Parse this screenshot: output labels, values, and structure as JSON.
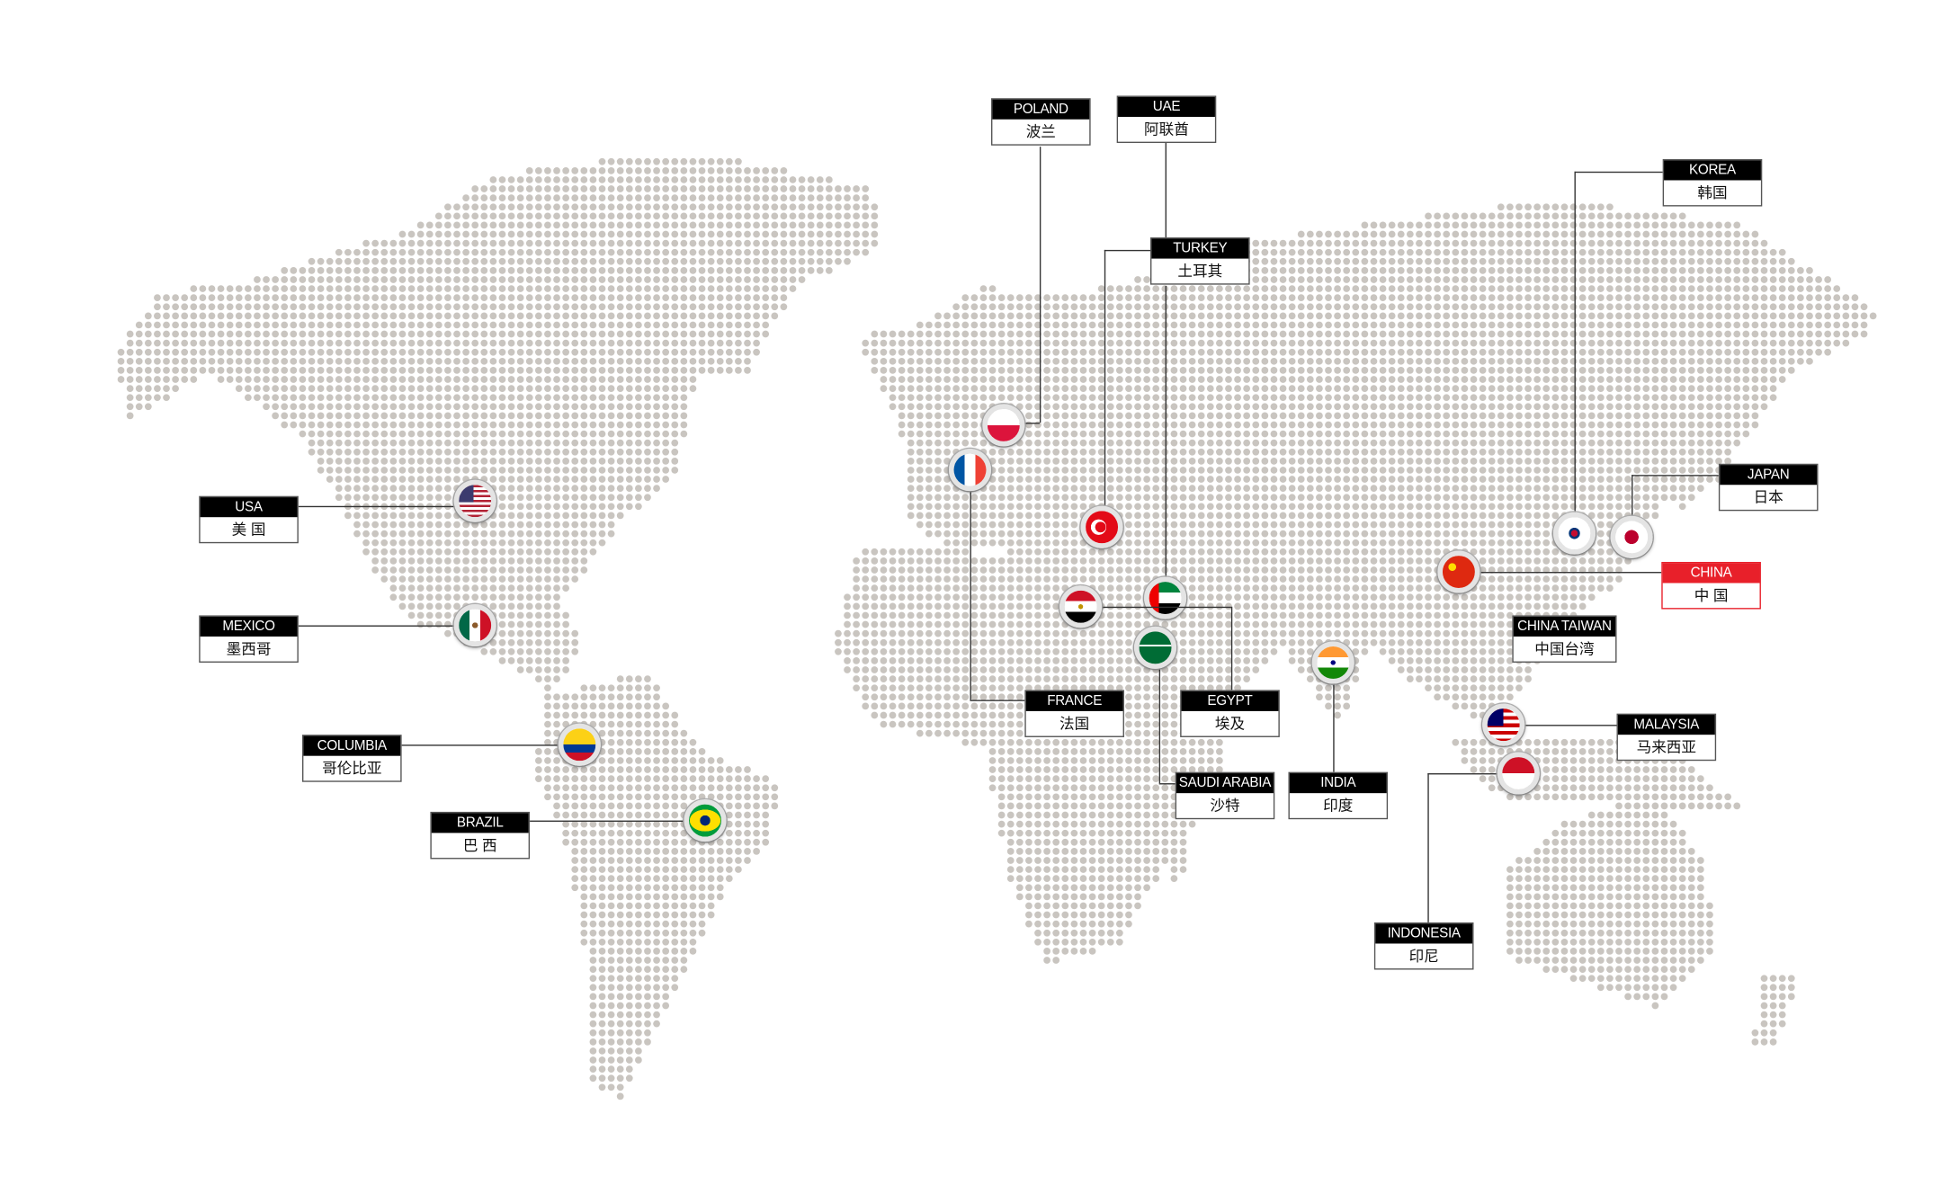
{
  "map": {
    "dot_color": "#c9c5c0",
    "line_color": "#333333",
    "highlight_color": "#e8202a"
  },
  "countries": [
    {
      "id": "poland",
      "en": "POLAND",
      "zh": "波兰",
      "flag": "poland-flag-icon"
    },
    {
      "id": "uae",
      "en": "UAE",
      "zh": "阿联酋",
      "flag": "uae-flag-icon"
    },
    {
      "id": "turkey",
      "en": "TURKEY",
      "zh": "土耳其",
      "flag": "turkey-flag-icon"
    },
    {
      "id": "korea",
      "en": "KOREA",
      "zh": "韩国",
      "flag": "korea-flag-icon"
    },
    {
      "id": "japan",
      "en": "JAPAN",
      "zh": "日本",
      "flag": "japan-flag-icon"
    },
    {
      "id": "china",
      "en": "CHINA",
      "zh": "中 国",
      "flag": "china-flag-icon",
      "highlighted": true
    },
    {
      "id": "taiwan",
      "en": "CHINA TAIWAN",
      "zh": "中国台湾"
    },
    {
      "id": "malaysia",
      "en": "MALAYSIA",
      "zh": "马来西亚",
      "flag": "malaysia-flag-icon"
    },
    {
      "id": "indonesia",
      "en": "INDONESIA",
      "zh": "印尼",
      "flag": "indonesia-flag-icon"
    },
    {
      "id": "india",
      "en": "INDIA",
      "zh": "印度",
      "flag": "india-flag-icon"
    },
    {
      "id": "saudi",
      "en": "SAUDI ARABIA",
      "zh": "沙特",
      "flag": "saudi-arabia-flag-icon"
    },
    {
      "id": "egypt",
      "en": "EGYPT",
      "zh": "埃及",
      "flag": "egypt-flag-icon"
    },
    {
      "id": "france",
      "en": "FRANCE",
      "zh": "法国",
      "flag": "france-flag-icon"
    },
    {
      "id": "usa",
      "en": "USA",
      "zh": "美 国",
      "flag": "usa-flag-icon"
    },
    {
      "id": "mexico",
      "en": "MEXICO",
      "zh": "墨西哥",
      "flag": "mexico-flag-icon"
    },
    {
      "id": "columbia",
      "en": "COLUMBIA",
      "zh": "哥伦比亚",
      "flag": "colombia-flag-icon"
    },
    {
      "id": "brazil",
      "en": "BRAZIL",
      "zh": "巴 西",
      "flag": "brazil-flag-icon"
    }
  ]
}
